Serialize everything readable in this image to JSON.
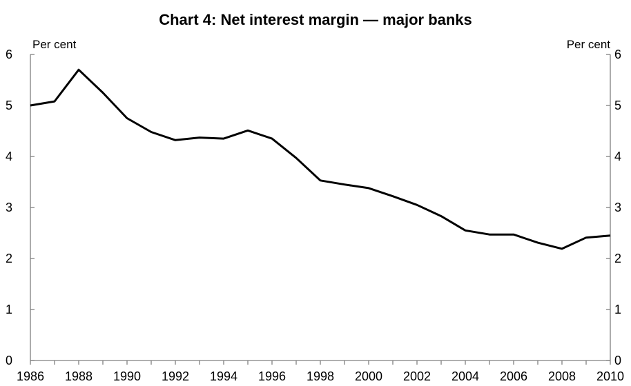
{
  "chart_data": {
    "type": "line",
    "title": "Chart 4: Net interest margin — major banks",
    "y_unit_left": "Per cent",
    "y_unit_right": "Per cent",
    "ylim": [
      0,
      6
    ],
    "xlim": [
      1986,
      2010
    ],
    "y_ticks": [
      0,
      1,
      2,
      3,
      4,
      5,
      6
    ],
    "x_ticks": [
      1986,
      1988,
      1990,
      1992,
      1994,
      1996,
      1998,
      2000,
      2002,
      2004,
      2006,
      2008,
      2010
    ],
    "grid": false,
    "legend": "none",
    "series": [
      {
        "x": [
          1986,
          1987,
          1988,
          1989,
          1990,
          1991,
          1992,
          1993,
          1994,
          1995,
          1996,
          1997,
          1998,
          1999,
          2000,
          2001,
          2002,
          2003,
          2004,
          2005,
          2006,
          2007,
          2008,
          2009,
          2010
        ],
        "y": [
          5.0,
          5.08,
          5.7,
          5.25,
          4.75,
          4.48,
          4.32,
          4.37,
          4.35,
          4.51,
          4.35,
          3.97,
          3.53,
          3.45,
          3.38,
          3.22,
          3.05,
          2.83,
          2.55,
          2.47,
          2.47,
          2.31,
          2.19,
          2.41,
          2.45
        ],
        "color": "#000000"
      }
    ]
  }
}
